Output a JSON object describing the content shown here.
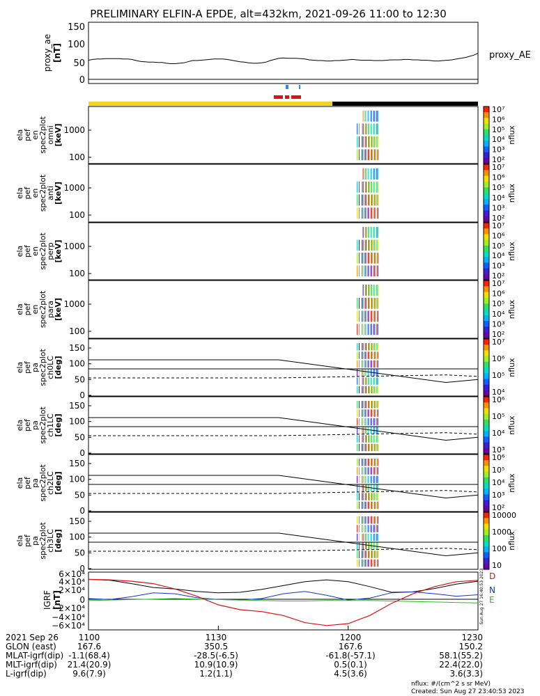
{
  "title": "PRELIMINARY ELFIN-A EPDE, alt=432km, 2021-09-26 11:00 to 12:30",
  "colors": {
    "science_zone": "#f5d21d",
    "no_data": "#000000",
    "red_bar": "#e01010",
    "blue_mark": "#2a8bff"
  },
  "panels": [
    {
      "id": "proxy_ae",
      "ylabel": [
        "proxy_ae",
        "[nT]"
      ],
      "yticks": [
        "150",
        "100",
        "50",
        "0"
      ],
      "right_label": "proxy_AE"
    },
    {
      "id": "omni",
      "ylabel": [
        "ela",
        "pef",
        "en",
        "spec2plot",
        "omni",
        "[keV]"
      ],
      "yticks": [
        "1000",
        "100"
      ],
      "cbar": {
        "ticks": [
          "10⁷",
          "10⁶",
          "10⁵",
          "10⁴",
          "10³",
          "10²"
        ],
        "label": "nflux"
      }
    },
    {
      "id": "anti",
      "ylabel": [
        "ela",
        "pef",
        "en",
        "spec2plot",
        "anti",
        "[keV]"
      ],
      "yticks": [
        "1000",
        "100"
      ],
      "cbar": {
        "ticks": [
          "10⁷",
          "10⁶",
          "10⁵",
          "10⁴",
          "10³",
          "10²"
        ],
        "label": "nflux"
      }
    },
    {
      "id": "perp",
      "ylabel": [
        "ela",
        "pef",
        "en",
        "spec2plot",
        "perp",
        "[keV]"
      ],
      "yticks": [
        "1000",
        "100"
      ],
      "cbar": {
        "ticks": [
          "10⁷",
          "10⁶",
          "10⁵",
          "10⁴",
          "10³",
          "10²"
        ],
        "label": "nflux"
      }
    },
    {
      "id": "para",
      "ylabel": [
        "ela",
        "pef",
        "en",
        "spec2plot",
        "para",
        "[keV]"
      ],
      "yticks": [
        "1000",
        "100"
      ],
      "cbar": {
        "ticks": [
          "10⁷",
          "10⁶",
          "10⁵",
          "10⁴",
          "10³",
          "10²"
        ],
        "label": "nflux"
      }
    },
    {
      "id": "ch0LC",
      "ylabel": [
        "ela",
        "pef",
        "pa",
        "spec2plot",
        "ch0LC",
        "[deg]"
      ],
      "yticks": [
        "150",
        "100",
        "50",
        "0"
      ],
      "cbar": {
        "ticks": [
          "10⁷",
          "10⁶",
          "10⁵",
          "10⁴"
        ],
        "label": "nflux"
      }
    },
    {
      "id": "ch1LC",
      "ylabel": [
        "ela",
        "pef",
        "pa",
        "spec2plot",
        "ch1LC",
        "[deg]"
      ],
      "yticks": [
        "150",
        "100",
        "50",
        "0"
      ],
      "cbar": {
        "ticks": [
          "10⁶",
          "10⁵",
          "10⁴",
          "10³"
        ],
        "label": "nflux"
      }
    },
    {
      "id": "ch2LC",
      "ylabel": [
        "ela",
        "pef",
        "pa",
        "spec2plot",
        "ch2LC",
        "[deg]"
      ],
      "yticks": [
        "150",
        "100",
        "50",
        "0"
      ],
      "cbar": {
        "ticks": [
          "10⁶",
          "10⁵",
          "10⁴",
          "10³",
          "10²"
        ],
        "label": "nflux"
      }
    },
    {
      "id": "ch3LC",
      "ylabel": [
        "ela",
        "pef",
        "pa",
        "spec2plot",
        "ch3LC",
        "[deg]"
      ],
      "yticks": [
        "150",
        "100",
        "50",
        "0"
      ],
      "cbar": {
        "ticks": [
          "10000",
          "1000",
          "100",
          "10"
        ],
        "label": "nflux"
      }
    },
    {
      "id": "igrf",
      "ylabel": [
        "IGRF",
        "[nT]"
      ],
      "yticks": [
        "6×10⁴",
        "4×10⁴",
        "2×10⁴",
        "0",
        "−2×10⁴",
        "−4×10⁴",
        "−6×10⁴"
      ],
      "legend": [
        {
          "name": "D",
          "color": "#e01010"
        },
        {
          "name": "N",
          "color": "#1030e0"
        },
        {
          "name": "E",
          "color": "#20c020"
        }
      ]
    }
  ],
  "chart_data": {
    "type": "line",
    "x_ticks": [
      "1100",
      "1130",
      "1200",
      "1230"
    ],
    "proxy_ae": {
      "ylim": [
        0,
        160
      ],
      "t": [
        0,
        1,
        2,
        3,
        4,
        5,
        6,
        7,
        8,
        9,
        10,
        11,
        12,
        13,
        14,
        15,
        16,
        17,
        18,
        19,
        20,
        21,
        22,
        23,
        24,
        25,
        26,
        27,
        28,
        29,
        30,
        31,
        32,
        33,
        34,
        35,
        36,
        37,
        38,
        39,
        40,
        41,
        42,
        43,
        44,
        45,
        46,
        47,
        48,
        49,
        50,
        51,
        52,
        53,
        54,
        55,
        56,
        57,
        58,
        59,
        60,
        61,
        62,
        63,
        64,
        65,
        66,
        67,
        68,
        69,
        70,
        71,
        72,
        73,
        74,
        75,
        76,
        77,
        78,
        79,
        80,
        81,
        82,
        83,
        84,
        85,
        86,
        87,
        88,
        89,
        90
      ],
      "values": [
        50,
        52,
        53,
        53,
        54,
        54,
        54,
        54,
        53,
        53,
        52,
        49,
        47,
        46,
        45,
        45,
        44,
        44,
        42,
        41,
        41,
        42,
        43,
        46,
        49,
        49,
        50,
        51,
        52,
        53,
        53,
        53,
        52,
        50,
        48,
        46,
        45,
        43,
        42,
        42,
        43,
        45,
        49,
        52,
        55,
        56,
        55,
        55,
        55,
        54,
        53,
        51,
        50,
        49,
        49,
        48,
        48,
        49,
        49,
        50,
        51,
        52,
        51,
        50,
        50,
        50,
        49,
        49,
        49,
        50,
        51,
        51,
        51,
        52,
        52,
        51,
        51,
        50,
        50,
        49,
        48,
        48,
        49,
        50,
        51,
        53,
        55,
        57,
        60,
        63,
        68
      ]
    },
    "igrf": {
      "ylim": [
        -60000,
        60000
      ],
      "t": [
        0,
        5,
        10,
        15,
        20,
        25,
        30,
        35,
        40,
        45,
        50,
        55,
        60,
        65,
        70,
        75,
        80,
        85,
        90
      ],
      "series": [
        {
          "name": "D",
          "values": [
            45000,
            44000,
            41000,
            36000,
            25000,
            10000,
            -8000,
            -18000,
            -22000,
            -30000,
            -45000,
            -51000,
            -47000,
            -30000,
            -5000,
            15000,
            30000,
            40000,
            43000
          ]
        },
        {
          "name": "N",
          "values": [
            5000,
            3000,
            9000,
            17000,
            15000,
            7000,
            3000,
            2000,
            5000,
            15000,
            20000,
            12000,
            2000,
            6000,
            17000,
            19000,
            15000,
            10000,
            13000
          ]
        },
        {
          "name": "E",
          "values": [
            1000,
            2000,
            3000,
            4000,
            5000,
            4000,
            3000,
            2000,
            1000,
            0,
            0,
            1000,
            1000,
            1000,
            0,
            -1000,
            -2000,
            -3000,
            -4000
          ]
        },
        {
          "name": "Btot",
          "values": [
            45000,
            43000,
            36000,
            28000,
            25000,
            20000,
            17000,
            18000,
            24000,
            32000,
            40000,
            44000,
            40000,
            30000,
            18000,
            19000,
            26000,
            35000,
            41000
          ]
        }
      ]
    },
    "spectrogram_time": [
      62,
      67
    ]
  },
  "footer": {
    "rows": [
      [
        "2021 Sep 26",
        "1100",
        "1130",
        "1200",
        "1230"
      ],
      [
        "GLON (east)",
        "167.6",
        "350.5",
        "167.6",
        "150.2"
      ],
      [
        "MLAT-igrf(dip)",
        "-1.1(68.4)",
        "-28.5(-6.5)",
        "-61.8(-57.1)",
        "58.1(55.2)"
      ],
      [
        "MLT-igrf(dip)",
        "21.4(20.9)",
        "10.9(10.9)",
        "0.5(0.1)",
        "22.4(22.0)"
      ],
      [
        "L-igrf(dip)",
        "9.6(7.9)",
        "1.2(1.1)",
        "4.5(3.6)",
        "3.6(3.3)"
      ]
    ],
    "units_note": "nflux: #/(cm^2 s sr MeV)",
    "created": "Created: Sun Aug 27 23:40:53 2023",
    "side_stamp": "Sun Aug 27 16:40:53 2023"
  }
}
